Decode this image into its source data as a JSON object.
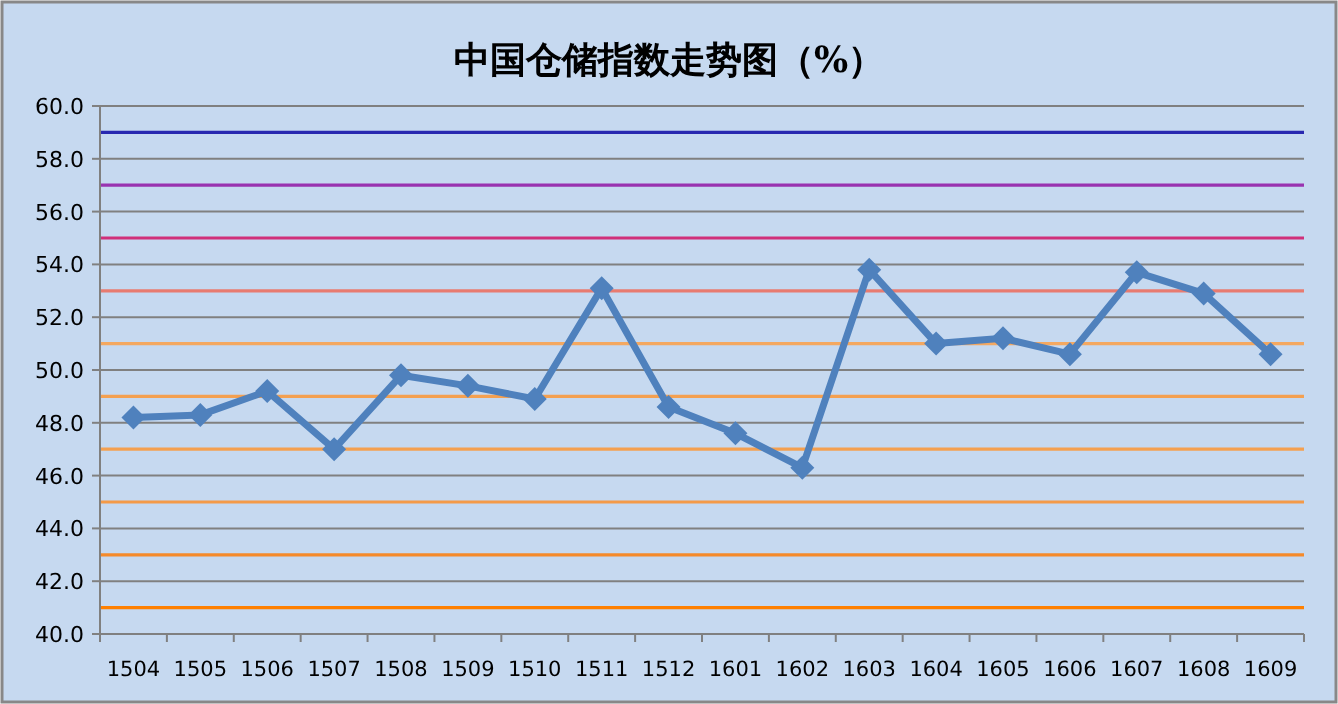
{
  "chart_data": {
    "type": "line",
    "title": "中国仓储指数走势图（%）",
    "categories": [
      "1504",
      "1505",
      "1506",
      "1507",
      "1508",
      "1509",
      "1510",
      "1511",
      "1512",
      "1601",
      "1602",
      "1603",
      "1604",
      "1605",
      "1606",
      "1607",
      "1608",
      "1609"
    ],
    "series": [
      {
        "color": "#4f81bd",
        "values": [
          48.2,
          48.3,
          49.2,
          47.0,
          49.8,
          49.4,
          48.9,
          53.1,
          48.6,
          47.6,
          46.3,
          53.8,
          51.0,
          51.2,
          50.6,
          53.7,
          52.9,
          50.6
        ]
      }
    ],
    "ylim": [
      40,
      60
    ],
    "yticks": [
      {
        "value": 40,
        "label": "40.0"
      },
      {
        "value": 42,
        "label": "42.0"
      },
      {
        "value": 44,
        "label": "44.0"
      },
      {
        "value": 46,
        "label": "46.0"
      },
      {
        "value": 48,
        "label": "48.0"
      },
      {
        "value": 50,
        "label": "50.0"
      },
      {
        "value": 52,
        "label": "52.0"
      },
      {
        "value": 54,
        "label": "54.0"
      },
      {
        "value": 56,
        "label": "56.0"
      },
      {
        "value": 58,
        "label": "58.0"
      },
      {
        "value": 60,
        "label": "60.0"
      }
    ],
    "ref_lines": [
      {
        "axis": "y",
        "value": 41,
        "color": "#ff8000"
      },
      {
        "axis": "y",
        "value": 43,
        "color": "#f58a2a"
      },
      {
        "axis": "y",
        "value": 45,
        "color": "#f49a48"
      },
      {
        "axis": "y",
        "value": 47,
        "color": "#f4a050"
      },
      {
        "axis": "y",
        "value": 49,
        "color": "#f4a050"
      },
      {
        "axis": "y",
        "value": 51,
        "color": "#f4a860"
      },
      {
        "axis": "y",
        "value": 53,
        "color": "#e87b70"
      },
      {
        "axis": "y",
        "value": 55,
        "color": "#d0307a"
      },
      {
        "axis": "y",
        "value": 57,
        "color": "#9933b0"
      },
      {
        "axis": "y",
        "value": 59,
        "color": "#2828b0"
      }
    ],
    "grid": "y",
    "marker": "diamond",
    "line_style": "solid"
  }
}
